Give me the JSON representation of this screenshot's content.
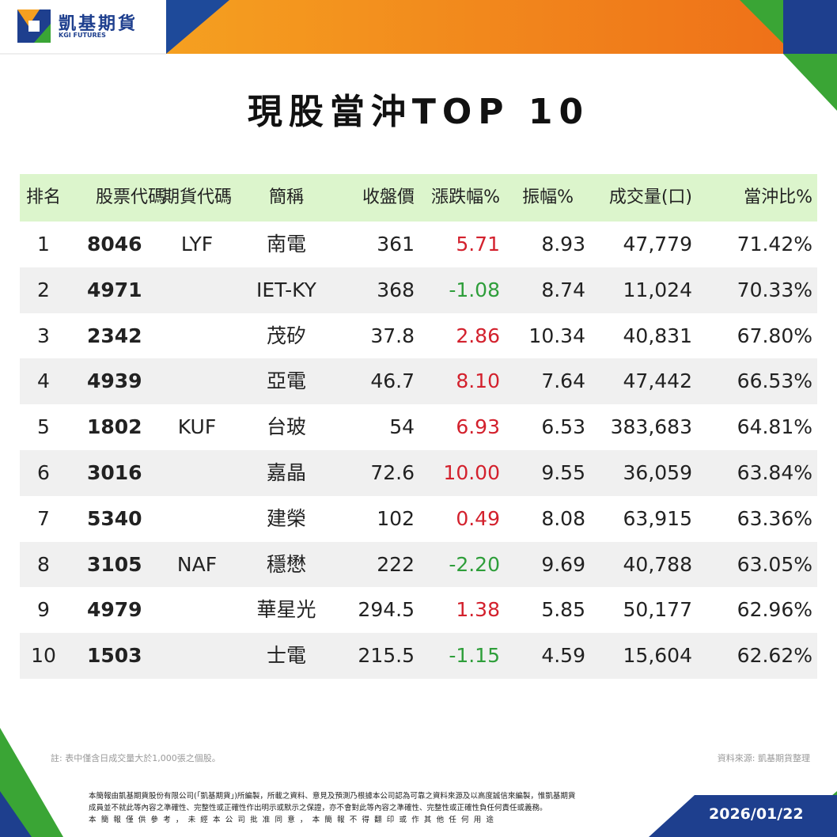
{
  "header": {
    "brand": "凱基期貨",
    "brand_en": "KGI FUTURES"
  },
  "title": "現股當沖TOP 10",
  "table": {
    "columns": [
      "排名",
      "股票代碼",
      "期貨代碼",
      "簡稱",
      "收盤價",
      "漲跌幅%",
      "振幅%",
      "成交量(口)",
      "當沖比%"
    ],
    "rows": [
      [
        "1",
        "8046",
        "LYF",
        "南電",
        "361",
        "5.71",
        "8.93",
        "47,779",
        "71.42%"
      ],
      [
        "2",
        "4971",
        "",
        "IET-KY",
        "368",
        "-1.08",
        "8.74",
        "11,024",
        "70.33%"
      ],
      [
        "3",
        "2342",
        "",
        "茂矽",
        "37.8",
        "2.86",
        "10.34",
        "40,831",
        "67.80%"
      ],
      [
        "4",
        "4939",
        "",
        "亞電",
        "46.7",
        "8.10",
        "7.64",
        "47,442",
        "66.53%"
      ],
      [
        "5",
        "1802",
        "KUF",
        "台玻",
        "54",
        "6.93",
        "6.53",
        "383,683",
        "64.81%"
      ],
      [
        "6",
        "3016",
        "",
        "嘉晶",
        "72.6",
        "10.00",
        "9.55",
        "36,059",
        "63.84%"
      ],
      [
        "7",
        "5340",
        "",
        "建榮",
        "102",
        "0.49",
        "8.08",
        "63,915",
        "63.36%"
      ],
      [
        "8",
        "3105",
        "NAF",
        "穩懋",
        "222",
        "-2.20",
        "9.69",
        "40,788",
        "63.05%"
      ],
      [
        "9",
        "4979",
        "",
        "華星光",
        "294.5",
        "1.38",
        "5.85",
        "50,177",
        "62.96%"
      ],
      [
        "10",
        "1503",
        "",
        "士電",
        "215.5",
        "-1.15",
        "4.59",
        "15,604",
        "62.62%"
      ]
    ]
  },
  "footer": {
    "note": "註: 表中僅含日成交量大於1,000張之個股。",
    "source": "資料來源: 凱基期貨整理",
    "disclaimer": [
      "本簡報由凱基期貨股份有限公司(「凱基期貨」)所編製，所載之資料、意見及預測乃根據本公司認為可靠之資料來源及以高度誠信來編製，惟凱基期貨",
      "成員並不就此等內容之準確性、完整性或正確性作出明示或默示之保證，亦不會對此等內容之準確性、完整性或正確性負任何責任或義務。",
      "本簡報僅供參考，未經本公司批准同意，本簡報不得翻印或作其他任何用途"
    ],
    "date": "2026/01/22"
  }
}
